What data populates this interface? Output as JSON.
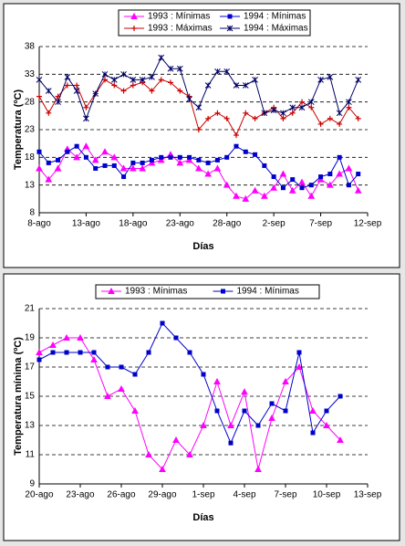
{
  "chart_data": [
    {
      "type": "line",
      "ylabel": "Temperatura (ºC)",
      "xlabel": "Días",
      "categories": [
        "8-ago",
        null,
        null,
        null,
        null,
        "13-ago",
        null,
        null,
        null,
        null,
        "18-ago",
        null,
        null,
        null,
        null,
        "23-ago",
        null,
        null,
        null,
        null,
        "28-ago",
        null,
        null,
        null,
        null,
        "2-sep",
        null,
        null,
        null,
        null,
        "7-sep",
        null,
        null,
        null,
        null,
        "12-sep"
      ],
      "ylim": [
        8,
        38
      ],
      "yticks": [
        8,
        13,
        18,
        23,
        28,
        33,
        38
      ],
      "grid": true,
      "series": [
        {
          "name": "1993 : Mínimas",
          "color": "#ff00ff",
          "marker": "triangle",
          "values": [
            16,
            14,
            16,
            19.5,
            18,
            20,
            17.5,
            19,
            18,
            16,
            16,
            16,
            17,
            17.5,
            18.5,
            17,
            17.5,
            16,
            15,
            16,
            13,
            11,
            10.5,
            12,
            11,
            12.5,
            15,
            12,
            13.5,
            11,
            14,
            13,
            15,
            16,
            12,
            null
          ]
        },
        {
          "name": "1994 : Mínimas",
          "color": "#0000cc",
          "marker": "square",
          "values": [
            19,
            17,
            17.5,
            19,
            20,
            18,
            16,
            16.5,
            16.5,
            14.5,
            17,
            17,
            17.5,
            18,
            18,
            18,
            18,
            17.5,
            17,
            17.5,
            18,
            20,
            19,
            18.5,
            16.5,
            14.5,
            12.5,
            14,
            12.5,
            13,
            14.5,
            15,
            18,
            13,
            15,
            null
          ]
        },
        {
          "name": "1993 : Máximas",
          "color": "#cc0000",
          "marker": "plus",
          "values": [
            29,
            26,
            29,
            31,
            31,
            27,
            29.5,
            32,
            31,
            30,
            31,
            31.5,
            30,
            32,
            31.5,
            30,
            29,
            23,
            25,
            26,
            25,
            22,
            26,
            25,
            26,
            27,
            25,
            26,
            28,
            27,
            24,
            25,
            24,
            27,
            25,
            null
          ]
        },
        {
          "name": "1994 : Máximas",
          "color": "#000066",
          "marker": "star",
          "values": [
            32,
            30,
            28,
            32.5,
            30,
            25,
            29.5,
            33,
            32,
            33,
            32,
            32,
            32.5,
            36,
            34,
            34,
            28.5,
            27,
            31,
            33.5,
            33.5,
            31,
            31,
            32,
            26,
            26.5,
            26,
            27,
            27,
            28,
            32,
            32.5,
            26,
            28,
            32,
            null
          ]
        }
      ]
    },
    {
      "type": "line",
      "ylabel": "Temperatura mínima (ºC)",
      "xlabel": "Días",
      "categories": [
        "20-ago",
        null,
        null,
        "23-ago",
        null,
        null,
        "26-ago",
        null,
        null,
        "29-ago",
        null,
        null,
        "1-sep",
        null,
        null,
        "4-sep",
        null,
        null,
        "7-sep",
        null,
        null,
        "10-sep",
        null,
        null,
        "13-sep"
      ],
      "ylim": [
        9,
        21
      ],
      "yticks": [
        9,
        11,
        13,
        15,
        17,
        19,
        21
      ],
      "grid": true,
      "series": [
        {
          "name": "1993 : Mínimas",
          "color": "#ff00ff",
          "marker": "triangle",
          "values": [
            18,
            18.5,
            19,
            19,
            17.5,
            15,
            15.5,
            14,
            11,
            10,
            12,
            11,
            13,
            16,
            13,
            15.3,
            10,
            13.5,
            16,
            17,
            14,
            13,
            12,
            null,
            null
          ]
        },
        {
          "name": "1994 : Mínimas",
          "color": "#0000cc",
          "marker": "square",
          "values": [
            17.5,
            18,
            18,
            18,
            18,
            17,
            17,
            16.5,
            18,
            20,
            19,
            18,
            16.5,
            14,
            11.8,
            14,
            13,
            14.5,
            14,
            18,
            12.5,
            14,
            15,
            null,
            null
          ]
        }
      ]
    }
  ]
}
